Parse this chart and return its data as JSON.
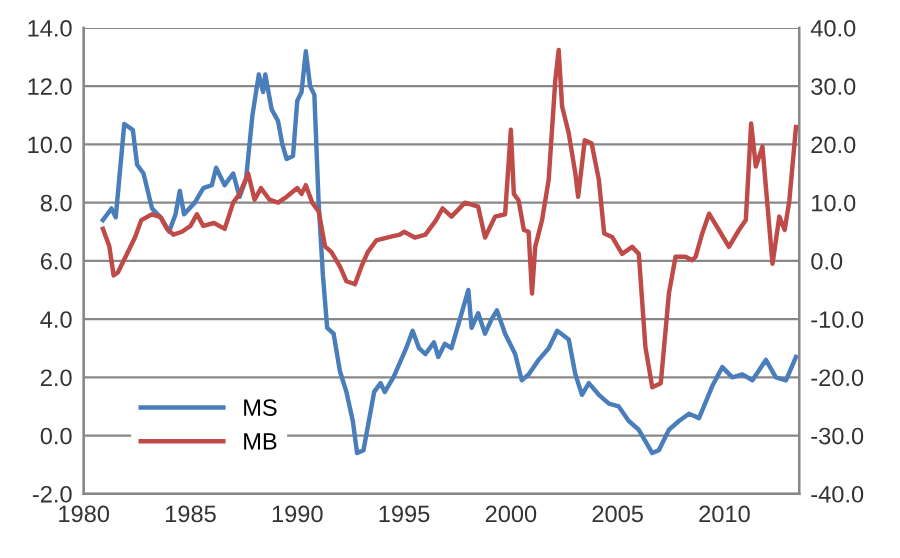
{
  "chart_data": {
    "type": "line",
    "xlim": [
      1980,
      2013.5
    ],
    "xticks": [
      1980,
      1985,
      1990,
      1995,
      2000,
      2005,
      2010
    ],
    "ylim": [
      -2,
      14
    ],
    "yticks": [
      {
        "value": -2,
        "label": "-2.0"
      },
      {
        "value": 0,
        "label": "0.0"
      },
      {
        "value": 2,
        "label": "2.0"
      },
      {
        "value": 4,
        "label": "4.0"
      },
      {
        "value": 6,
        "label": "6.0"
      },
      {
        "value": 8,
        "label": "8.0"
      },
      {
        "value": 10,
        "label": "10.0"
      },
      {
        "value": 12,
        "label": "12.0"
      },
      {
        "value": 14,
        "label": "14.0"
      }
    ],
    "y2lim": [
      -40,
      40
    ],
    "y2ticks": [
      {
        "value": -40,
        "label": "-40.0"
      },
      {
        "value": -30,
        "label": "-30.0"
      },
      {
        "value": -20,
        "label": "-20.0"
      },
      {
        "value": -10,
        "label": "-10.0"
      },
      {
        "value": 0,
        "label": "0.0"
      },
      {
        "value": 10,
        "label": "10.0"
      },
      {
        "value": 20,
        "label": "20.0"
      },
      {
        "value": 30,
        "label": "30.0"
      },
      {
        "value": 40,
        "label": "40.0"
      }
    ],
    "grid": "y",
    "legend": "bottom left",
    "marker": "none",
    "line_style": "solid",
    "series": [
      {
        "name": "MS",
        "color": "#4a7ebb",
        "x": [
          1980.9,
          1981.3,
          1981.5,
          1981.9,
          1982.3,
          1982.5,
          1982.8,
          1983.2,
          1983.6,
          1984.0,
          1984.3,
          1984.5,
          1984.7,
          1985.2,
          1985.6,
          1986.0,
          1986.2,
          1986.6,
          1987.0,
          1987.3,
          1987.6,
          1987.9,
          1988.2,
          1988.4,
          1988.5,
          1988.8,
          1989.1,
          1989.3,
          1989.5,
          1989.8,
          1990.0,
          1990.2,
          1990.4,
          1990.6,
          1990.8,
          1991.0,
          1991.2,
          1991.4,
          1991.7,
          1992.0,
          1992.3,
          1992.6,
          1992.8,
          1993.1,
          1993.3,
          1993.6,
          1993.9,
          1994.1,
          1994.5,
          1994.8,
          1995.1,
          1995.4,
          1995.7,
          1996.0,
          1996.4,
          1996.6,
          1996.91,
          1997.22,
          1998.01,
          1998.16,
          1998.47,
          1998.79,
          1999.1,
          1999.35,
          1999.73,
          2000.2,
          2000.51,
          2000.83,
          2001.3,
          2001.77,
          2002.17,
          2002.71,
          2003.02,
          2003.33,
          2003.65,
          2004.12,
          2004.59,
          2005.05,
          2005.52,
          2005.99,
          2006.62,
          2006.93,
          2007.4,
          2007.87,
          2008.34,
          2008.81,
          2009.43,
          2009.9,
          2010.37,
          2010.84,
          2011.31,
          2011.94,
          2012.41,
          2012.88,
          2013.35
        ],
        "values": [
          7.4,
          7.8,
          7.5,
          10.7,
          10.5,
          9.3,
          9.0,
          7.8,
          7.5,
          7.0,
          7.6,
          8.4,
          7.6,
          8.0,
          8.5,
          8.6,
          9.2,
          8.6,
          9.0,
          8.2,
          8.8,
          11.0,
          12.4,
          11.8,
          12.4,
          11.2,
          10.8,
          10.0,
          9.5,
          9.6,
          11.5,
          11.8,
          13.2,
          12.0,
          11.7,
          8.0,
          5.5,
          3.7,
          3.5,
          2.2,
          1.5,
          0.5,
          -0.6,
          -0.5,
          0.3,
          1.5,
          1.8,
          1.5,
          2.0,
          2.5,
          3.0,
          3.6,
          3.0,
          2.8,
          3.2,
          2.7,
          3.15,
          3.0,
          5.0,
          3.7,
          4.2,
          3.5,
          4.0,
          4.3,
          3.5,
          2.8,
          1.9,
          2.1,
          2.6,
          3.0,
          3.6,
          3.3,
          2.1,
          1.4,
          1.8,
          1.4,
          1.1,
          1.0,
          0.5,
          0.2,
          -0.6,
          -0.5,
          0.2,
          0.5,
          0.75,
          0.6,
          1.7,
          2.35,
          2.0,
          2.1,
          1.9,
          2.6,
          2.0,
          1.9,
          2.7
        ]
      },
      {
        "name": "MB",
        "color": "#be4b48",
        "axis": "y2",
        "x": [
          1980.9,
          1981.2,
          1981.4,
          1981.6,
          1982.0,
          1982.4,
          1982.7,
          1983.2,
          1983.6,
          1983.9,
          1984.2,
          1984.6,
          1985.0,
          1985.3,
          1985.6,
          1986.1,
          1986.6,
          1987.0,
          1987.3,
          1987.7,
          1988.0,
          1988.3,
          1988.7,
          1989.1,
          1989.5,
          1990.0,
          1990.2,
          1990.4,
          1990.7,
          1991.0,
          1991.3,
          1991.6,
          1992.0,
          1992.3,
          1992.7,
          1993.0,
          1993.3,
          1993.7,
          1994.2,
          1994.8,
          1995.0,
          1995.5,
          1996.0,
          1996.5,
          1996.8,
          1997.22,
          1997.85,
          1998.47,
          1998.79,
          1999.26,
          1999.73,
          2000.0,
          2000.14,
          2000.36,
          2000.61,
          2000.83,
          2000.99,
          2001.14,
          2001.46,
          2001.77,
          2002.08,
          2002.24,
          2002.4,
          2002.71,
          2003.02,
          2003.15,
          2003.46,
          2003.78,
          2004.12,
          2004.37,
          2004.74,
          2005.21,
          2005.68,
          2005.99,
          2006.3,
          2006.62,
          2007.02,
          2007.4,
          2007.71,
          2008.18,
          2008.49,
          2008.65,
          2008.96,
          2009.28,
          2009.74,
          2010.21,
          2010.68,
          2011.0,
          2011.25,
          2011.47,
          2011.78,
          2011.94,
          2012.25,
          2012.57,
          2012.82,
          2013.04,
          2013.35
        ],
        "values": [
          5.5,
          2.5,
          -2.5,
          -2,
          1,
          4,
          7,
          8,
          7.5,
          5.5,
          4.5,
          5,
          6,
          8,
          6,
          6.5,
          5.5,
          10,
          11.5,
          15,
          10.5,
          12.5,
          10.5,
          10,
          11,
          12.5,
          11.5,
          13,
          10,
          8.5,
          2.5,
          1.5,
          -1,
          -3.5,
          -4,
          -1,
          1.5,
          3.5,
          4,
          4.5,
          5,
          4,
          4.5,
          7,
          9,
          7.6,
          10,
          9.3,
          4,
          7.6,
          8,
          22.5,
          11.5,
          10.4,
          5.3,
          5,
          -5.6,
          2.4,
          7,
          13.9,
          31,
          36.2,
          26.5,
          21.9,
          15,
          11,
          20.7,
          20.2,
          13.9,
          4.7,
          4.1,
          1.2,
          2.4,
          1.2,
          -14.8,
          -21.7,
          -21,
          -5.6,
          0.7,
          0.7,
          0.1,
          0.7,
          4.7,
          8.1,
          5.3,
          2.4,
          5.3,
          7,
          23.6,
          16.2,
          19.6,
          12.7,
          -0.5,
          7.6,
          5.3,
          10.4,
          23
        ]
      }
    ]
  }
}
